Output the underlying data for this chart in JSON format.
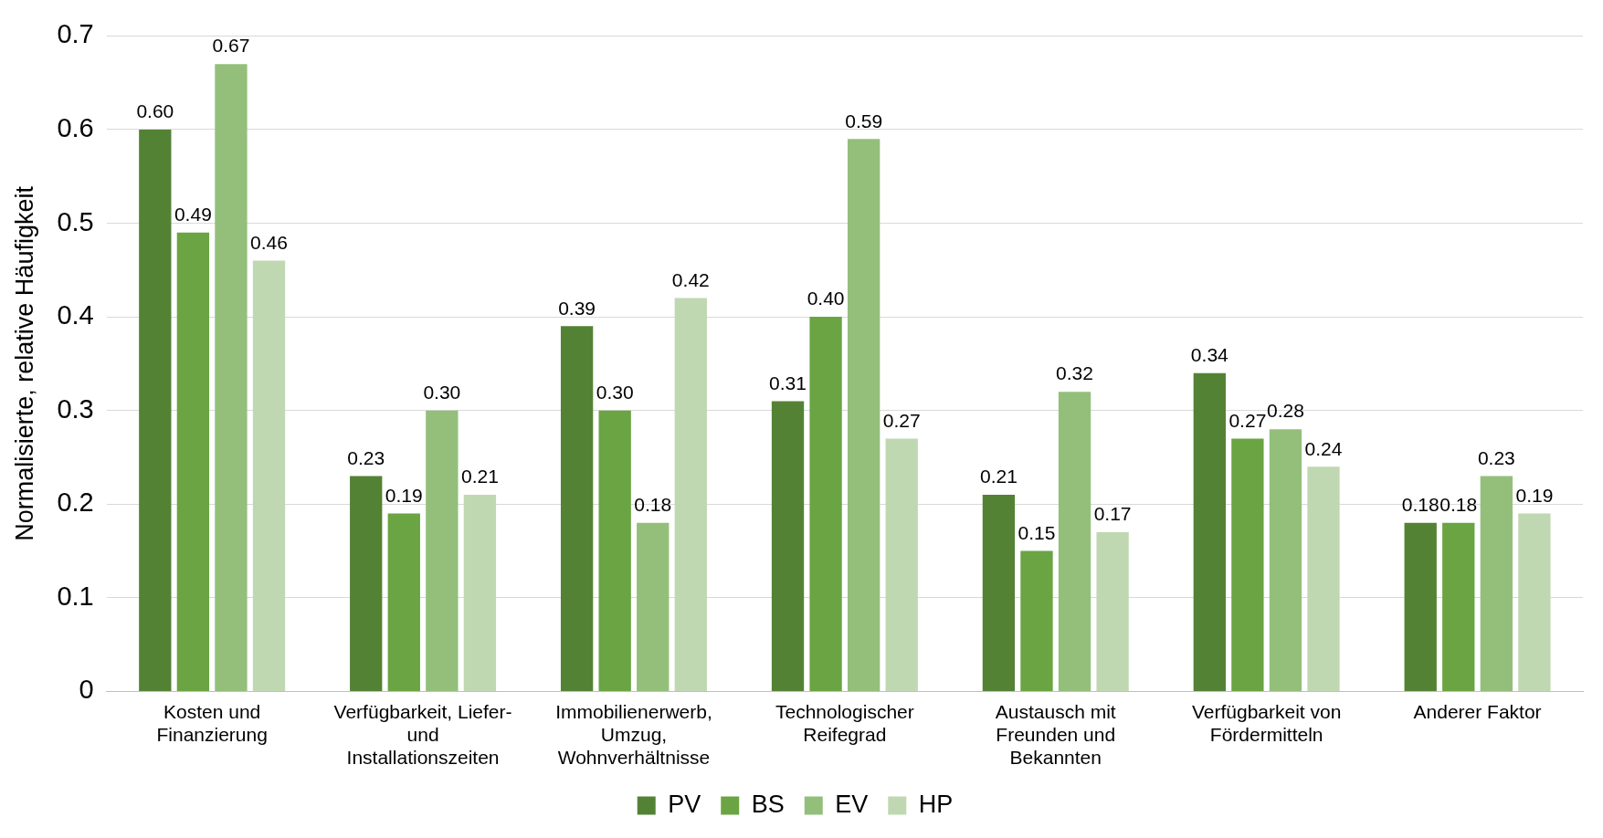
{
  "chart_data": {
    "type": "bar",
    "ylabel": "Normalisierte, relative Häufigkeit",
    "categories": [
      "Kosten und Finanzierung",
      "Verfügbarkeit, Liefer- und Installationszeiten",
      "Immobilienerwerb, Umzug, Wohnverhältnisse",
      "Technologischer Reifegrad",
      "Austausch mit Freunden und Bekannten",
      "Verfügbarkeit von Fördermitteln",
      "Anderer Faktor"
    ],
    "series": [
      {
        "name": "PV",
        "color": "#548235",
        "values": [
          0.6,
          0.23,
          0.39,
          0.31,
          0.21,
          0.34,
          0.18
        ],
        "value_labels": [
          "0.60",
          "0.23",
          "0.39",
          "0.31",
          "0.21",
          "0.34",
          "0.18"
        ]
      },
      {
        "name": "BS",
        "color": "#6aa443",
        "values": [
          0.49,
          0.19,
          0.3,
          0.4,
          0.15,
          0.27,
          0.18
        ],
        "value_labels": [
          "0.49",
          "0.19",
          "0.30",
          "0.40",
          "0.15",
          "0.27",
          "0.18"
        ]
      },
      {
        "name": "EV",
        "color": "#93bf7b",
        "values": [
          0.67,
          0.3,
          0.18,
          0.59,
          0.32,
          0.28,
          0.23
        ],
        "value_labels": [
          "0.67",
          "0.30",
          "0.18",
          "0.59",
          "0.32",
          "0.28",
          "0.23"
        ]
      },
      {
        "name": "HP",
        "color": "#c0d8b2",
        "values": [
          0.46,
          0.21,
          0.42,
          0.27,
          0.17,
          0.24,
          0.19
        ],
        "value_labels": [
          "0.46",
          "0.21",
          "0.42",
          "0.27",
          "0.17",
          "0.24",
          "0.19"
        ]
      }
    ],
    "ylim": [
      0,
      0.7
    ],
    "yticks": [
      0,
      0.1,
      0.2,
      0.3,
      0.4,
      0.5,
      0.6,
      0.7
    ],
    "grid": "y",
    "legend": "bottom"
  }
}
